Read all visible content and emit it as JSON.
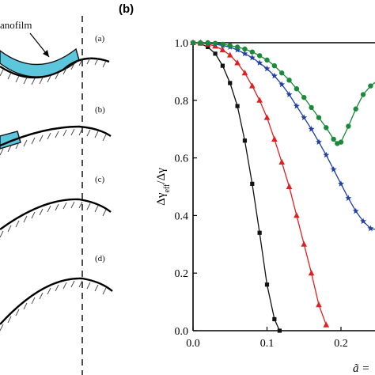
{
  "left_panel": {
    "film_label": "anofilm",
    "sub_labels": [
      "(a)",
      "(b)",
      "(c)",
      "(d)"
    ],
    "film_color": "#5cc6dc"
  },
  "right_panel": {
    "panel_label": "(b)",
    "ylabel": "Δγ_eff / Δγ",
    "xlabel_visible": "ã ="
  },
  "chart_data": {
    "type": "line",
    "title": "",
    "xlabel": "ã =",
    "ylabel": "Δγeff/Δγ",
    "xlim": [
      0.0,
      0.25
    ],
    "ylim": [
      0.0,
      1.0
    ],
    "x_ticks": [
      "0.0",
      "0.1",
      "0.2"
    ],
    "y_ticks": [
      "0.0",
      "0.2",
      "0.4",
      "0.6",
      "0.8",
      "1.0"
    ],
    "reference_line": 1.0,
    "series": [
      {
        "color": "#111111",
        "marker": "square",
        "x": [
          0.0,
          0.01,
          0.02,
          0.03,
          0.04,
          0.05,
          0.06,
          0.07,
          0.08,
          0.09,
          0.1,
          0.11,
          0.117
        ],
        "y": [
          1.0,
          0.997,
          0.985,
          0.962,
          0.92,
          0.86,
          0.78,
          0.66,
          0.51,
          0.34,
          0.16,
          0.04,
          0.0
        ]
      },
      {
        "color": "#e02020",
        "marker": "triangle",
        "x": [
          0.0,
          0.01,
          0.02,
          0.03,
          0.04,
          0.05,
          0.06,
          0.07,
          0.08,
          0.09,
          0.1,
          0.11,
          0.12,
          0.13,
          0.14,
          0.15,
          0.16,
          0.17,
          0.18
        ],
        "y": [
          1.0,
          0.999,
          0.995,
          0.988,
          0.975,
          0.957,
          0.93,
          0.895,
          0.85,
          0.8,
          0.74,
          0.665,
          0.585,
          0.5,
          0.4,
          0.3,
          0.2,
          0.09,
          0.02
        ]
      },
      {
        "color": "#1f3fa6",
        "marker": "star",
        "x": [
          0.0,
          0.01,
          0.02,
          0.03,
          0.04,
          0.05,
          0.06,
          0.07,
          0.08,
          0.09,
          0.1,
          0.11,
          0.12,
          0.13,
          0.14,
          0.15,
          0.16,
          0.17,
          0.18,
          0.19,
          0.2,
          0.21,
          0.22,
          0.23,
          0.24,
          0.25
        ],
        "y": [
          1.0,
          1.0,
          0.998,
          0.995,
          0.99,
          0.985,
          0.975,
          0.962,
          0.948,
          0.93,
          0.91,
          0.885,
          0.855,
          0.82,
          0.78,
          0.74,
          0.7,
          0.655,
          0.61,
          0.56,
          0.51,
          0.46,
          0.415,
          0.38,
          0.355,
          0.35
        ]
      },
      {
        "color": "#1a8a3a",
        "marker": "circle",
        "x": [
          0.0,
          0.01,
          0.02,
          0.03,
          0.04,
          0.05,
          0.06,
          0.07,
          0.08,
          0.09,
          0.1,
          0.11,
          0.12,
          0.13,
          0.14,
          0.15,
          0.16,
          0.17,
          0.18,
          0.19,
          0.195,
          0.2,
          0.21,
          0.22,
          0.23,
          0.24,
          0.25
        ],
        "y": [
          1.0,
          1.0,
          1.0,
          0.998,
          0.995,
          0.99,
          0.985,
          0.978,
          0.968,
          0.955,
          0.94,
          0.92,
          0.895,
          0.87,
          0.84,
          0.81,
          0.775,
          0.74,
          0.705,
          0.665,
          0.65,
          0.655,
          0.71,
          0.77,
          0.82,
          0.85,
          0.87
        ]
      }
    ]
  }
}
